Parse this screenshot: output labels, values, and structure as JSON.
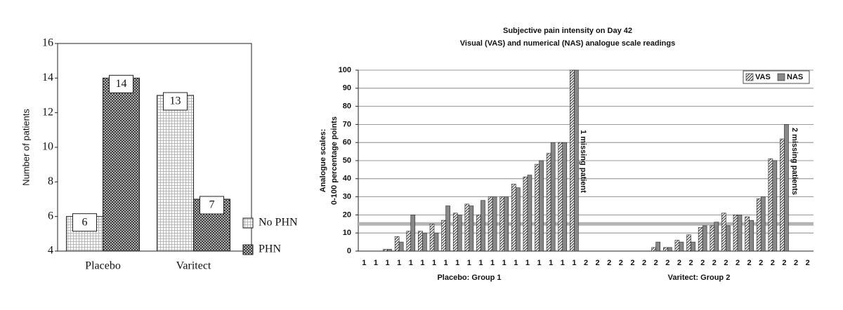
{
  "chart_data": [
    {
      "type": "bar",
      "ylabel": "Number of patients",
      "categories": [
        "Placebo",
        "Varitect"
      ],
      "series": [
        {
          "name": "No PHN",
          "color": "#b8b8b8",
          "values": [
            6,
            13
          ]
        },
        {
          "name": "PHN",
          "color": "#3a3a3a",
          "values": [
            14,
            7
          ]
        }
      ],
      "ylim": [
        4,
        16
      ],
      "yticks": [
        4,
        6,
        8,
        10,
        12,
        14,
        16
      ],
      "data_labels": true,
      "legend": "right"
    },
    {
      "type": "bar",
      "title": "Subjective pain intensity on Day 42",
      "subtitle": "Visual (VAS) and numerical (NAS) analogue scale readings",
      "ylabel": [
        "Analogue scales:",
        "0-100 percentage points"
      ],
      "categories": [
        "1",
        "1",
        "1",
        "1",
        "1",
        "1",
        "1",
        "1",
        "1",
        "1",
        "1",
        "1",
        "1",
        "1",
        "1",
        "1",
        "1",
        "1",
        "1",
        "2",
        "2",
        "2",
        "2",
        "2",
        "2",
        "2",
        "2",
        "2",
        "2",
        "2",
        "2",
        "2",
        "2",
        "2",
        "2",
        "2",
        "2",
        "2",
        "2"
      ],
      "series": [
        {
          "name": "VAS",
          "color": "#444444",
          "values": [
            0,
            0,
            1,
            8,
            11,
            11,
            15,
            17,
            21,
            26,
            20,
            30,
            30,
            37,
            41,
            48,
            54,
            60,
            100,
            0,
            0,
            0,
            0,
            0,
            0,
            2,
            2,
            6,
            9,
            13,
            14,
            21,
            20,
            19,
            29,
            51,
            62,
            null,
            null
          ]
        },
        {
          "name": "NAS",
          "color": "#888888",
          "values": [
            0,
            0,
            1,
            5,
            20,
            10,
            10,
            25,
            20,
            25,
            28,
            30,
            30,
            35,
            42,
            50,
            60,
            60,
            100,
            0,
            0,
            0,
            0,
            0,
            0,
            5,
            2,
            5,
            5,
            14,
            16,
            14,
            20,
            17,
            30,
            50,
            70,
            null,
            null
          ]
        }
      ],
      "ylim": [
        0,
        100
      ],
      "yticks": [
        0,
        10,
        20,
        30,
        40,
        50,
        60,
        70,
        80,
        90,
        100
      ],
      "grid": true,
      "hline": 15,
      "legend": "upper right",
      "annotations": [
        "1 missing patient",
        "2 missing patients"
      ],
      "group_labels": [
        "Placebo: Group 1",
        "Varitect: Group 2"
      ]
    }
  ]
}
